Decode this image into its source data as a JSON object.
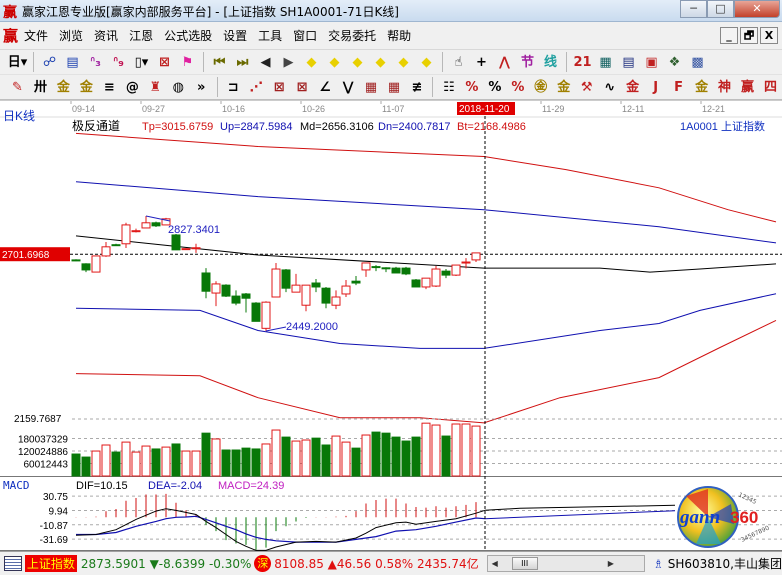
{
  "window": {
    "title": "赢家江恩专业版[赢家内部服务平台] - [上证指数  SH1A0001-71日K线]",
    "app_icon": "赢",
    "buttons": {
      "minimize": "─",
      "maximize": "□",
      "close": "✕"
    }
  },
  "menu": {
    "logo": "赢",
    "items": [
      "文件",
      "浏览",
      "资讯",
      "江恩",
      "公式选股",
      "设置",
      "工具",
      "窗口",
      "交易委托",
      "帮助"
    ],
    "mdi_buttons": [
      "_",
      "🗗",
      "X"
    ]
  },
  "toolbar1": [
    {
      "icon": "period-day-dropdown",
      "glyph": "日▾",
      "color": "#000"
    },
    {
      "sep": true
    },
    {
      "icon": "link-icon",
      "glyph": "☍",
      "color": "#1a3fb0"
    },
    {
      "icon": "notes-icon",
      "glyph": "▤",
      "color": "#1a3fb0"
    },
    {
      "icon": "indicator3-icon",
      "glyph": "ᐢ₃",
      "color": "#a020a0"
    },
    {
      "icon": "indicator9-icon",
      "glyph": "ᐢ₉",
      "color": "#c01050"
    },
    {
      "icon": "candle-dropdown-icon",
      "glyph": "▯▾",
      "color": "#000"
    },
    {
      "icon": "grid-icon",
      "glyph": "⊠",
      "color": "#c02020"
    },
    {
      "icon": "flag-icon",
      "glyph": "⚑",
      "color": "#e020a0"
    },
    {
      "sep": true
    },
    {
      "icon": "first-icon",
      "glyph": "⏮",
      "color": "#6a6a00"
    },
    {
      "icon": "last-icon",
      "glyph": "⏭",
      "color": "#6a6a00"
    },
    {
      "icon": "prev-icon",
      "glyph": "◀",
      "color": "#222"
    },
    {
      "icon": "next-icon",
      "glyph": "▶",
      "color": "#444"
    },
    {
      "icon": "zoom-left-icon",
      "glyph": "◆",
      "color": "#e8d000"
    },
    {
      "icon": "zoom-right-icon",
      "glyph": "◆",
      "color": "#e8d000"
    },
    {
      "icon": "expand-icon",
      "glyph": "◆",
      "color": "#e8d000"
    },
    {
      "icon": "shrink-icon",
      "glyph": "◆",
      "color": "#e8d000"
    },
    {
      "icon": "zoom-in-icon",
      "glyph": "◆",
      "color": "#e8d000"
    },
    {
      "icon": "zoom-out-icon",
      "glyph": "◆",
      "color": "#e8d000"
    },
    {
      "sep": true
    },
    {
      "icon": "hand-icon",
      "glyph": "☝",
      "color": "#000"
    },
    {
      "icon": "crosshair-icon",
      "glyph": "+",
      "color": "#000"
    },
    {
      "icon": "wave-icon",
      "glyph": "⋀",
      "color": "#c02020"
    },
    {
      "icon": "section-icon",
      "glyph": "节",
      "color": "#a020a0"
    },
    {
      "icon": "line-icon",
      "glyph": "线",
      "color": "#20a0a0"
    },
    {
      "sep": true
    },
    {
      "icon": "calendar-icon",
      "glyph": "21",
      "color": "#c02020"
    },
    {
      "icon": "calculator-icon",
      "glyph": "▦",
      "color": "#106060"
    },
    {
      "icon": "report-icon",
      "glyph": "▤",
      "color": "#203080"
    },
    {
      "icon": "save-icon",
      "glyph": "▣",
      "color": "#c02020"
    },
    {
      "icon": "network-icon",
      "glyph": "❖",
      "color": "#306030"
    },
    {
      "icon": "trade-icon",
      "glyph": "▩",
      "color": "#3050a0"
    }
  ],
  "toolbar2": [
    {
      "icon": "pen-icon",
      "glyph": "✎",
      "color": "#c02020"
    },
    {
      "icon": "parallel-lines-icon",
      "glyph": "卅",
      "color": "#000"
    },
    {
      "icon": "gold-split-icon",
      "glyph": "金",
      "color": "#a08000"
    },
    {
      "icon": "gold-split2-icon",
      "glyph": "金",
      "color": "#a08000"
    },
    {
      "icon": "fibonacci-icon",
      "glyph": "≡",
      "color": "#000"
    },
    {
      "icon": "spiral-icon",
      "glyph": "@",
      "color": "#000"
    },
    {
      "icon": "marker-icon",
      "glyph": "♜",
      "color": "#c02020"
    },
    {
      "icon": "circle-scale-icon",
      "glyph": "◍",
      "color": "#000"
    },
    {
      "icon": "more-icon",
      "glyph": "»",
      "color": "#000"
    },
    {
      "sep": true
    },
    {
      "icon": "box-icon",
      "glyph": "⊐",
      "color": "#000"
    },
    {
      "icon": "fan-lines-icon",
      "glyph": "⋰",
      "color": "#c02020"
    },
    {
      "icon": "gann-box-icon",
      "glyph": "⊠",
      "color": "#a02020"
    },
    {
      "icon": "gann-square-icon",
      "glyph": "⊠",
      "color": "#a02020"
    },
    {
      "icon": "angle-icon",
      "glyph": "∠",
      "color": "#000"
    },
    {
      "icon": "vline-icon",
      "glyph": "⋁",
      "color": "#000"
    },
    {
      "icon": "grid1-icon",
      "glyph": "▦",
      "color": "#a02020"
    },
    {
      "icon": "grid2-icon",
      "glyph": "▦",
      "color": "#a02020"
    },
    {
      "icon": "channel-icon",
      "glyph": "≢",
      "color": "#000"
    },
    {
      "sep": true
    },
    {
      "icon": "table-icon",
      "glyph": "☷",
      "color": "#000"
    },
    {
      "icon": "percent-line-icon",
      "glyph": "%",
      "color": "#c02020"
    },
    {
      "icon": "percent-icon",
      "glyph": "%",
      "color": "#000"
    },
    {
      "icon": "percent-lines-icon",
      "glyph": "%",
      "color": "#c02020"
    },
    {
      "icon": "gold-circle-icon",
      "glyph": "㊎",
      "color": "#a08000"
    },
    {
      "icon": "gold-lines-icon",
      "glyph": "金",
      "color": "#a08000"
    },
    {
      "icon": "ruler-icon",
      "glyph": "⚒",
      "color": "#c02020"
    },
    {
      "icon": "sine-icon",
      "glyph": "∿",
      "color": "#000"
    },
    {
      "icon": "gold-box-icon",
      "glyph": "金",
      "color": "#c02020"
    },
    {
      "icon": "j-angle-icon",
      "glyph": "J",
      "color": "#c02020"
    },
    {
      "icon": "f-angle-icon",
      "glyph": "F",
      "color": "#c02020"
    },
    {
      "icon": "gold-angle-icon",
      "glyph": "金",
      "color": "#a08000"
    },
    {
      "icon": "god-angle-icon",
      "glyph": "神",
      "color": "#c02020"
    },
    {
      "icon": "win-angle-icon",
      "glyph": "赢",
      "color": "#c02020"
    },
    {
      "icon": "four-angle-icon",
      "glyph": "四",
      "color": "#c02020"
    }
  ],
  "chart": {
    "period_label": "日K线",
    "date_ticks": [
      {
        "label": "09-14",
        "index": 0
      },
      {
        "label": "09-27",
        "index": 7
      },
      {
        "label": "10-16",
        "index": 15
      },
      {
        "label": "10-26",
        "index": 23
      },
      {
        "label": "11-07",
        "index": 31
      },
      {
        "label": "11-29",
        "index": 47
      },
      {
        "label": "12-11",
        "index": 55
      },
      {
        "label": "12-21",
        "index": 63
      }
    ],
    "cursor_date": "2018-11-20",
    "indicator_name": "极反通道",
    "indicator_values": {
      "tp": "Tp=3015.6759",
      "up": "Up=2847.5984",
      "md": "Md=2656.3106",
      "dn": "Dn=2400.7817",
      "bt": "Bt=2168.4986"
    },
    "symbol_label": "1A0001  上证指数",
    "price_marker": "2701.6968",
    "price_marker_value": 2701.6968,
    "bottom_price_label": "2159.7687",
    "bottom_price_value": 2159.7687,
    "high_label": "2827.3401",
    "low_label": "2449.2000",
    "colors": {
      "up": "#e01818",
      "down": "#087808",
      "tp": "#d01010",
      "upline": "#1010b0",
      "md": "#000000",
      "dn": "#1010b0",
      "bt": "#d01010"
    },
    "candles": [
      [
        2683,
        2685,
        2679,
        2681
      ],
      [
        2670,
        2672,
        2643,
        2650
      ],
      [
        2643,
        2696,
        2643,
        2696
      ],
      [
        2696,
        2742,
        2693,
        2726
      ],
      [
        2733,
        2736,
        2731,
        2731
      ],
      [
        2736,
        2805,
        2722,
        2798
      ],
      [
        2777,
        2786,
        2773,
        2779
      ],
      [
        2788,
        2827.34,
        2788,
        2805
      ],
      [
        2805,
        2809,
        2791,
        2795
      ],
      [
        2798,
        2821,
        2798,
        2818
      ],
      [
        2765,
        2768,
        2716,
        2716
      ],
      [
        2718,
        2721,
        2716,
        2720
      ],
      [
        2721,
        2736,
        2706,
        2723
      ],
      [
        2640,
        2656,
        2557,
        2580
      ],
      [
        2574,
        2613,
        2531,
        2604
      ],
      [
        2600,
        2603,
        2561,
        2564
      ],
      [
        2564,
        2583,
        2534,
        2541
      ],
      [
        2571,
        2574,
        2510,
        2557
      ],
      [
        2541,
        2544,
        2481,
        2481
      ],
      [
        2458,
        2547,
        2449.2,
        2544
      ],
      [
        2561,
        2673,
        2561,
        2653
      ],
      [
        2650,
        2653,
        2577,
        2590
      ],
      [
        2577,
        2637,
        2577,
        2600
      ],
      [
        2534,
        2600,
        2514,
        2600
      ],
      [
        2607,
        2620,
        2577,
        2594
      ],
      [
        2590,
        2594,
        2524,
        2541
      ],
      [
        2534,
        2583,
        2521,
        2561
      ],
      [
        2571,
        2617,
        2561,
        2597
      ],
      [
        2613,
        2630,
        2600,
        2607
      ],
      [
        2650,
        2673,
        2627,
        2673
      ],
      [
        2661,
        2666,
        2646,
        2659
      ],
      [
        2657,
        2659,
        2643,
        2655
      ],
      [
        2656,
        2660,
        2640,
        2640
      ],
      [
        2656,
        2660,
        2633,
        2637
      ],
      [
        2617,
        2620,
        2594,
        2594
      ],
      [
        2594,
        2623,
        2587,
        2623
      ],
      [
        2597,
        2663,
        2594,
        2653
      ],
      [
        2646,
        2653,
        2623,
        2633
      ],
      [
        2633,
        2666,
        2630,
        2666
      ],
      [
        2673,
        2689,
        2655,
        2676
      ],
      [
        2683,
        2706,
        2676,
        2706
      ]
    ],
    "channel_lines": {
      "tp": [
        [
          0,
          3099
        ],
        [
          18.2,
          3056
        ],
        [
          40.8,
          3023
        ],
        [
          49,
          2980
        ],
        [
          58.3,
          2920
        ],
        [
          65.2,
          2848
        ],
        [
          70,
          2808
        ]
      ],
      "up": [
        [
          0,
          2940
        ],
        [
          18.2,
          2891
        ],
        [
          40.8,
          2848
        ],
        [
          58.3,
          2792
        ],
        [
          70,
          2739
        ]
      ],
      "md": [
        [
          0,
          2762
        ],
        [
          18.2,
          2699
        ],
        [
          40.8,
          2656
        ],
        [
          52.4,
          2656
        ],
        [
          57.4,
          2643
        ],
        [
          62.4,
          2653
        ],
        [
          70,
          2670
        ]
      ],
      "dn": [
        [
          0,
          2524
        ],
        [
          12.4,
          2517
        ],
        [
          18.2,
          2451
        ],
        [
          26.4,
          2408
        ],
        [
          34.4,
          2392
        ],
        [
          40.8,
          2392
        ],
        [
          52.4,
          2451
        ],
        [
          58.3,
          2474
        ],
        [
          62.4,
          2517
        ],
        [
          70,
          2572
        ]
      ],
      "bt": [
        [
          0,
          2309
        ],
        [
          12.4,
          2302
        ],
        [
          18.2,
          2230
        ],
        [
          26.4,
          2164
        ],
        [
          34.4,
          2164
        ],
        [
          40.8,
          2147
        ],
        [
          48.4,
          2230
        ],
        [
          58.3,
          2296
        ],
        [
          64.4,
          2395
        ],
        [
          70,
          2484
        ]
      ]
    }
  },
  "volume": {
    "axis_labels": [
      {
        "label": "180037329",
        "value": 180037329
      },
      {
        "label": "120024886",
        "value": 120024886
      },
      {
        "label": "60012443",
        "value": 60012443
      }
    ],
    "values": [
      105600000,
      91000000,
      120000000,
      149000000,
      115000000,
      163000000,
      115000000,
      144000000,
      130000000,
      139000000,
      154000000,
      120000000,
      120000000,
      206000000,
      178000000,
      125000000,
      125000000,
      134000000,
      130000000,
      154000000,
      221000000,
      187000000,
      168000000,
      173000000,
      182000000,
      149000000,
      192000000,
      163000000,
      134000000,
      197000000,
      211000000,
      206000000,
      187000000,
      168000000,
      187000000,
      254000000,
      245000000,
      192000000,
      250000000,
      250000000,
      240000000
    ]
  },
  "macd": {
    "title": "MACD",
    "dif_label": "DIF=10.15",
    "dea_label": "DEA=-2.04",
    "macd_label": "MACD=24.39",
    "axis_labels": [
      {
        "label": "30.75",
        "value": 30.75
      },
      {
        "label": "9.94",
        "value": 9.94
      },
      {
        "label": "-10.87",
        "value": -10.87
      },
      {
        "label": "-31.69",
        "value": -31.69
      }
    ],
    "histogram": [
      0.5,
      0.5,
      1,
      8.7,
      12,
      24,
      28,
      33,
      33,
      34,
      21,
      10,
      4,
      -11,
      -20,
      -33,
      -38,
      -40,
      -47,
      -44,
      -20,
      -13,
      -6,
      -1,
      0.5,
      0.5,
      1,
      2,
      9,
      20,
      25,
      27,
      27,
      20,
      15,
      14,
      16,
      14,
      16,
      18,
      22
    ],
    "dif": [
      [
        0,
        -26
      ],
      [
        2,
        -25
      ],
      [
        4,
        -18
      ],
      [
        6,
        -3
      ],
      [
        8,
        9
      ],
      [
        9,
        12.5
      ],
      [
        10,
        10
      ],
      [
        12,
        4
      ],
      [
        13,
        -6
      ],
      [
        14,
        -15
      ],
      [
        15,
        -25
      ],
      [
        16,
        -35
      ],
      [
        17,
        -42
      ],
      [
        18,
        -48
      ],
      [
        19,
        -48
      ],
      [
        20,
        -43
      ],
      [
        22,
        -36
      ],
      [
        24,
        -35
      ],
      [
        26,
        -36
      ],
      [
        28,
        -30
      ],
      [
        29,
        -23
      ],
      [
        30,
        -15
      ],
      [
        32,
        -8
      ],
      [
        33,
        -7
      ],
      [
        34,
        -10
      ],
      [
        36,
        -6
      ],
      [
        38,
        -2
      ],
      [
        40,
        6
      ],
      [
        40.9,
        10.15
      ]
    ],
    "dea": [
      [
        0,
        -25
      ],
      [
        2,
        -25
      ],
      [
        4,
        -22
      ],
      [
        6,
        -13
      ],
      [
        8,
        -6
      ],
      [
        9,
        -2
      ],
      [
        10,
        0
      ],
      [
        11,
        0.5
      ],
      [
        12,
        1.5
      ],
      [
        13,
        -3
      ],
      [
        14,
        -8
      ],
      [
        15,
        -13
      ],
      [
        16,
        -18
      ],
      [
        17,
        -24
      ],
      [
        18,
        -29
      ],
      [
        19,
        -32
      ],
      [
        20,
        -34
      ],
      [
        22,
        -36
      ],
      [
        26,
        -36
      ],
      [
        28,
        -32
      ],
      [
        30,
        -28
      ],
      [
        32,
        -20
      ],
      [
        34,
        -18
      ],
      [
        36,
        -13
      ],
      [
        38,
        -7
      ],
      [
        40,
        -1
      ],
      [
        40.9,
        -2.04
      ]
    ],
    "colors": {
      "dif": "#000000",
      "dea": "#1010b0",
      "macd": "#c020c0"
    }
  },
  "statusbar": {
    "index_name": "上证指数",
    "sh_price": "2873.5901",
    "sh_change": "▼-8.6399",
    "sh_pct": "-0.30%",
    "sz_badge": "深",
    "sz_price": "8108.85",
    "sz_change": "▲46.56 0.58% 2435.74亿",
    "scroll_position": 0.1,
    "stock": "SH603810,丰山集团"
  },
  "logo": {
    "text": "gann360",
    "digits": "1234567890123"
  }
}
